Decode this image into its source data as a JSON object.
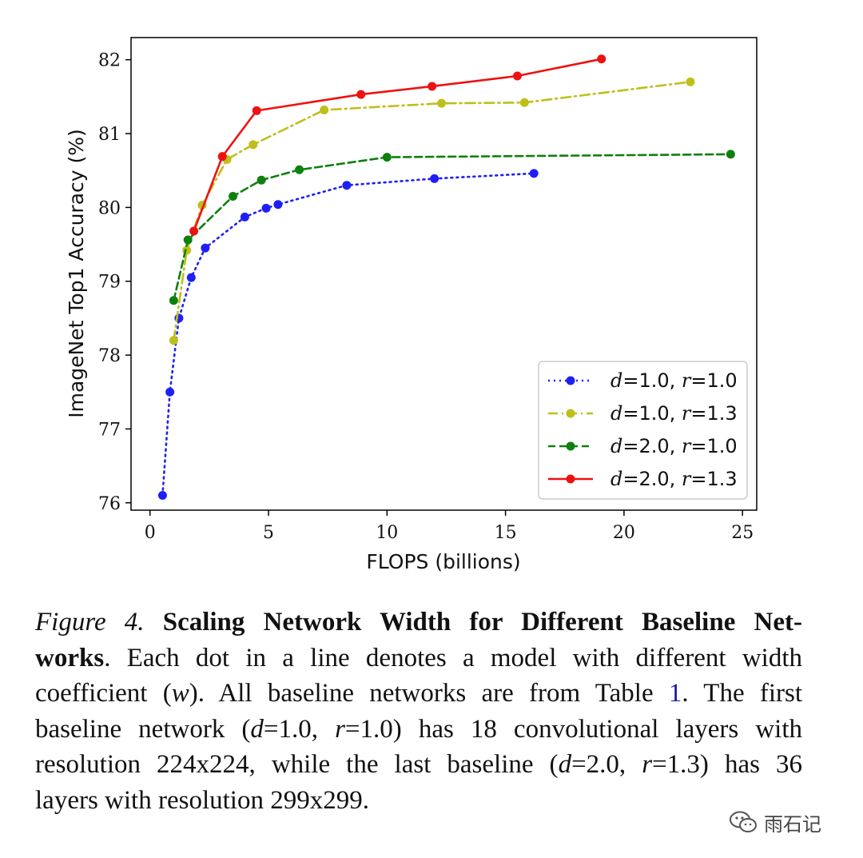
{
  "chart_data": {
    "type": "line",
    "title": "",
    "xlabel": "FLOPS (billions)",
    "ylabel": "ImageNet Top1 Accuracy (%)",
    "xlim": [
      -0.8,
      25.6
    ],
    "ylim": [
      75.9,
      82.3
    ],
    "xticks": [
      0,
      5,
      10,
      15,
      20,
      25
    ],
    "yticks": [
      76,
      77,
      78,
      79,
      80,
      81,
      82
    ],
    "grid": false,
    "legend_position": "lower-right",
    "series": [
      {
        "name": "d=1.0, r=1.0",
        "legend_var1": "d",
        "legend_val1": "=1.0, ",
        "legend_var2": "r",
        "legend_val2": "=1.0",
        "color": "#1f1ff5",
        "linestyle": "dotted",
        "x": [
          0.53,
          0.84,
          1.22,
          1.74,
          2.33,
          4.0,
          4.9,
          5.4,
          8.3,
          12.0,
          16.2
        ],
        "y": [
          76.1,
          77.5,
          78.5,
          79.05,
          79.45,
          79.87,
          79.99,
          80.04,
          80.3,
          80.39,
          80.46
        ]
      },
      {
        "name": "d=1.0, r=1.3",
        "legend_var1": "d",
        "legend_val1": "=1.0, ",
        "legend_var2": "r",
        "legend_val2": "=1.3",
        "color": "#bfbf1a",
        "linestyle": "dashdot",
        "x": [
          1.0,
          1.55,
          2.2,
          3.25,
          4.35,
          7.35,
          12.3,
          15.8,
          22.8
        ],
        "y": [
          78.2,
          79.42,
          80.03,
          80.65,
          80.85,
          81.32,
          81.41,
          81.42,
          81.7
        ]
      },
      {
        "name": "d=2.0, r=1.0",
        "legend_var1": "d",
        "legend_val1": "=2.0, ",
        "legend_var2": "r",
        "legend_val2": "=1.0",
        "color": "#0e800e",
        "linestyle": "dashed",
        "x": [
          1.0,
          1.6,
          3.5,
          4.7,
          6.3,
          10.0,
          24.5
        ],
        "y": [
          78.74,
          79.56,
          80.15,
          80.37,
          80.51,
          80.68,
          80.72
        ]
      },
      {
        "name": "d=2.0, r=1.3",
        "legend_var1": "d",
        "legend_val1": "=2.0, ",
        "legend_var2": "r",
        "legend_val2": "=1.3",
        "color": "#ee1111",
        "linestyle": "solid",
        "x": [
          1.85,
          3.05,
          4.5,
          8.9,
          11.9,
          15.5,
          19.05
        ],
        "y": [
          79.68,
          80.69,
          81.31,
          81.53,
          81.64,
          81.78,
          82.01
        ]
      }
    ]
  },
  "caption": {
    "figure_label": "Figure 4.",
    "bold_title_line1": "Scaling Network Width for Different Baseline Net-",
    "bold_title_line2": "works",
    "line2_rest": ". Each dot in a line denotes a model with different width",
    "line3_a": "coefficient (",
    "line3_w": "w",
    "line3_b": "). All baseline networks are from Table ",
    "line3_ref": "1",
    "line3_c": ". The first",
    "line4_a": "baseline network (",
    "line4_d": "d",
    "line4_b": "=1.0, ",
    "line4_r": "r",
    "line4_c": "=1.0) has 18 convolutional layers with",
    "line5_a": "resolution 224x224, while the last baseline (",
    "line5_d": "d",
    "line5_b": "=2.0, ",
    "line5_r": "r",
    "line5_c": "=1.3) has 36",
    "line6": "layers with resolution 299x299."
  },
  "watermark": {
    "text": "雨石记",
    "icon": "wechat-icon"
  }
}
